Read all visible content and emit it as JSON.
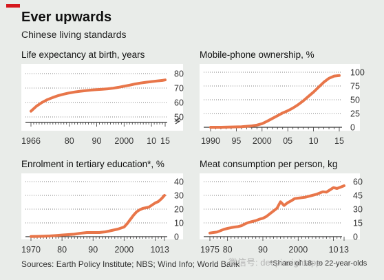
{
  "title": "Ever upwards",
  "subtitle": "Chinese living standards",
  "source": "Sources: Earth Policy Institute; NBS; Wind Info; World Bank",
  "note": "*Share of 18- to 22-year-olds",
  "watermark": "微信号: deepinsightapp",
  "colors": {
    "line": "#e8764a",
    "accent": "#d6181d",
    "background": "#e9ece9",
    "panel": "#ffffff"
  },
  "chart_data": [
    {
      "type": "line",
      "title": "Life expectancy at birth, years",
      "xlim": [
        1966,
        2015
      ],
      "ylim": [
        50,
        80
      ],
      "yticks": [
        80,
        70,
        60,
        50
      ],
      "xtick_labels": [
        {
          "x": 1966,
          "label": "1966"
        },
        {
          "x": 1980,
          "label": "80"
        },
        {
          "x": 1990,
          "label": "90"
        },
        {
          "x": 2000,
          "label": "2000"
        },
        {
          "x": 2010,
          "label": "10"
        },
        {
          "x": 2015,
          "label": "15"
        }
      ],
      "broken_axis": true,
      "x": [
        1966,
        1968,
        1970,
        1972,
        1974,
        1976,
        1978,
        1980,
        1982,
        1984,
        1986,
        1988,
        1990,
        1992,
        1994,
        1996,
        1998,
        2000,
        2002,
        2004,
        2006,
        2008,
        2010,
        2012,
        2014,
        2015
      ],
      "values": [
        54,
        57.5,
        60,
        62,
        63.5,
        64.8,
        65.8,
        66.6,
        67.3,
        67.8,
        68.2,
        68.6,
        68.9,
        69.2,
        69.5,
        69.9,
        70.5,
        71.3,
        72,
        72.8,
        73.5,
        74,
        74.5,
        74.9,
        75.3,
        75.6
      ]
    },
    {
      "type": "line",
      "title": "Mobile-phone ownership, %",
      "xlim": [
        1990,
        2015
      ],
      "ylim": [
        0,
        100
      ],
      "yticks": [
        100,
        75,
        50,
        25,
        0
      ],
      "xtick_labels": [
        {
          "x": 1990,
          "label": "1990"
        },
        {
          "x": 1995,
          "label": "95"
        },
        {
          "x": 2000,
          "label": "2000"
        },
        {
          "x": 2005,
          "label": "05"
        },
        {
          "x": 2010,
          "label": "10"
        },
        {
          "x": 2015,
          "label": "15"
        }
      ],
      "x": [
        1990,
        1992,
        1994,
        1996,
        1998,
        1999,
        2000,
        2001,
        2002,
        2003,
        2004,
        2005,
        2006,
        2007,
        2008,
        2009,
        2010,
        2011,
        2012,
        2013,
        2014,
        2015
      ],
      "values": [
        0,
        0,
        0.5,
        1,
        2.5,
        4,
        6.5,
        11,
        16,
        21,
        26,
        30,
        35,
        41,
        48,
        56,
        64,
        73,
        82,
        89,
        93,
        94
      ]
    },
    {
      "type": "line",
      "title": "Enrolment in tertiary education*, %",
      "xlim": [
        1970,
        2013
      ],
      "ylim": [
        0,
        40
      ],
      "yticks": [
        40,
        30,
        20,
        10,
        0
      ],
      "xtick_labels": [
        {
          "x": 1970,
          "label": "1970"
        },
        {
          "x": 1980,
          "label": "80"
        },
        {
          "x": 1990,
          "label": "90"
        },
        {
          "x": 2000,
          "label": "2000"
        },
        {
          "x": 2010,
          "label": "10"
        },
        {
          "x": 2013,
          "label": "13"
        }
      ],
      "x": [
        1970,
        1972,
        1974,
        1976,
        1978,
        1980,
        1982,
        1984,
        1986,
        1988,
        1990,
        1992,
        1994,
        1996,
        1998,
        2000,
        2001,
        2002,
        2003,
        2004,
        2005,
        2006,
        2007,
        2008,
        2009,
        2010,
        2011,
        2012,
        2013
      ],
      "values": [
        0.1,
        0.2,
        0.3,
        0.5,
        0.8,
        1.2,
        1.5,
        1.8,
        2.5,
        3,
        3,
        3,
        3.5,
        4.5,
        5.5,
        7,
        9.5,
        12.5,
        15.5,
        18,
        19.5,
        20.5,
        21,
        21.5,
        23,
        24.5,
        25.5,
        27.5,
        30
      ]
    },
    {
      "type": "line",
      "title": "Meat consumption per person, kg",
      "xlim": [
        1975,
        2013
      ],
      "ylim": [
        0,
        60
      ],
      "yticks": [
        60,
        45,
        30,
        15,
        0
      ],
      "xtick_labels": [
        {
          "x": 1975,
          "label": "1975"
        },
        {
          "x": 1980,
          "label": "80"
        },
        {
          "x": 1990,
          "label": "90"
        },
        {
          "x": 2000,
          "label": "2000"
        },
        {
          "x": 2010,
          "label": "10"
        },
        {
          "x": 2013,
          "label": "13"
        }
      ],
      "x": [
        1975,
        1976,
        1977,
        1978,
        1979,
        1980,
        1981,
        1982,
        1983,
        1984,
        1985,
        1986,
        1987,
        1988,
        1989,
        1990,
        1991,
        1992,
        1993,
        1994,
        1995,
        1996,
        1997,
        1998,
        1999,
        2000,
        2001,
        2002,
        2003,
        2004,
        2005,
        2006,
        2007,
        2008,
        2009,
        2010,
        2011,
        2012,
        2013
      ],
      "values": [
        4,
        4.5,
        5,
        6.5,
        8,
        9,
        9.8,
        10.5,
        11,
        12,
        14,
        15.5,
        16.5,
        17.5,
        19,
        20,
        22,
        25,
        28,
        31,
        38,
        34,
        37,
        39,
        41.5,
        42,
        42.5,
        43,
        44,
        45,
        46,
        47.5,
        49,
        48.5,
        51,
        53.5,
        52.5,
        54,
        55.5
      ]
    }
  ]
}
